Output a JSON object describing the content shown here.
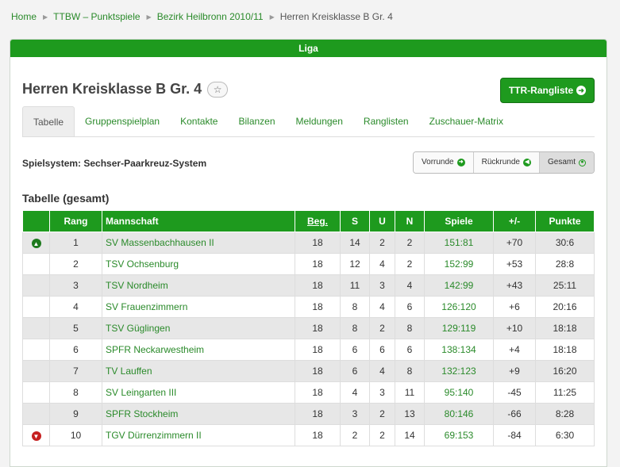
{
  "breadcrumb": {
    "items": [
      "Home",
      "TTBW – Punktspiele",
      "Bezirk Heilbronn 2010/11"
    ],
    "current": "Herren Kreisklasse B Gr. 4"
  },
  "panel": {
    "header": "Liga"
  },
  "page": {
    "title": "Herren Kreisklasse B Gr. 4",
    "star_icon": "star-icon",
    "ttr_button": "TTR-Rangliste"
  },
  "tabs": [
    "Tabelle",
    "Gruppenspielplan",
    "Kontakte",
    "Bilanzen",
    "Meldungen",
    "Ranglisten",
    "Zuschauer-Matrix"
  ],
  "spielsystem": "Spielsystem: Sechser-Paarkreuz-System",
  "round_buttons": [
    "Vorrunde",
    "Rückrunde",
    "Gesamt"
  ],
  "section_title": "Tabelle (gesamt)",
  "table": {
    "headers": [
      "",
      "Rang",
      "Mannschaft",
      "Beg.",
      "S",
      "U",
      "N",
      "Spiele",
      "+/-",
      "Punkte"
    ],
    "rows": [
      {
        "trend": "up",
        "rang": "1",
        "team": "SV Massenbachhausen II",
        "beg": "18",
        "s": "14",
        "u": "2",
        "n": "2",
        "spiele": "151:81",
        "diff": "+70",
        "punkte": "30:6"
      },
      {
        "trend": "",
        "rang": "2",
        "team": "TSV Ochsenburg",
        "beg": "18",
        "s": "12",
        "u": "4",
        "n": "2",
        "spiele": "152:99",
        "diff": "+53",
        "punkte": "28:8"
      },
      {
        "trend": "",
        "rang": "3",
        "team": "TSV Nordheim",
        "beg": "18",
        "s": "11",
        "u": "3",
        "n": "4",
        "spiele": "142:99",
        "diff": "+43",
        "punkte": "25:11"
      },
      {
        "trend": "",
        "rang": "4",
        "team": "SV Frauenzimmern",
        "beg": "18",
        "s": "8",
        "u": "4",
        "n": "6",
        "spiele": "126:120",
        "diff": "+6",
        "punkte": "20:16"
      },
      {
        "trend": "",
        "rang": "5",
        "team": "TSV Güglingen",
        "beg": "18",
        "s": "8",
        "u": "2",
        "n": "8",
        "spiele": "129:119",
        "diff": "+10",
        "punkte": "18:18"
      },
      {
        "trend": "",
        "rang": "6",
        "team": "SPFR Neckarwestheim",
        "beg": "18",
        "s": "6",
        "u": "6",
        "n": "6",
        "spiele": "138:134",
        "diff": "+4",
        "punkte": "18:18"
      },
      {
        "trend": "",
        "rang": "7",
        "team": "TV Lauffen",
        "beg": "18",
        "s": "6",
        "u": "4",
        "n": "8",
        "spiele": "132:123",
        "diff": "+9",
        "punkte": "16:20"
      },
      {
        "trend": "",
        "rang": "8",
        "team": "SV Leingarten III",
        "beg": "18",
        "s": "4",
        "u": "3",
        "n": "11",
        "spiele": "95:140",
        "diff": "-45",
        "punkte": "11:25"
      },
      {
        "trend": "",
        "rang": "9",
        "team": "SPFR Stockheim",
        "beg": "18",
        "s": "3",
        "u": "2",
        "n": "13",
        "spiele": "80:146",
        "diff": "-66",
        "punkte": "8:28"
      },
      {
        "trend": "down",
        "rang": "10",
        "team": "TGV Dürrenzimmern II",
        "beg": "18",
        "s": "2",
        "u": "2",
        "n": "14",
        "spiele": "69:153",
        "diff": "-84",
        "punkte": "6:30"
      }
    ]
  }
}
